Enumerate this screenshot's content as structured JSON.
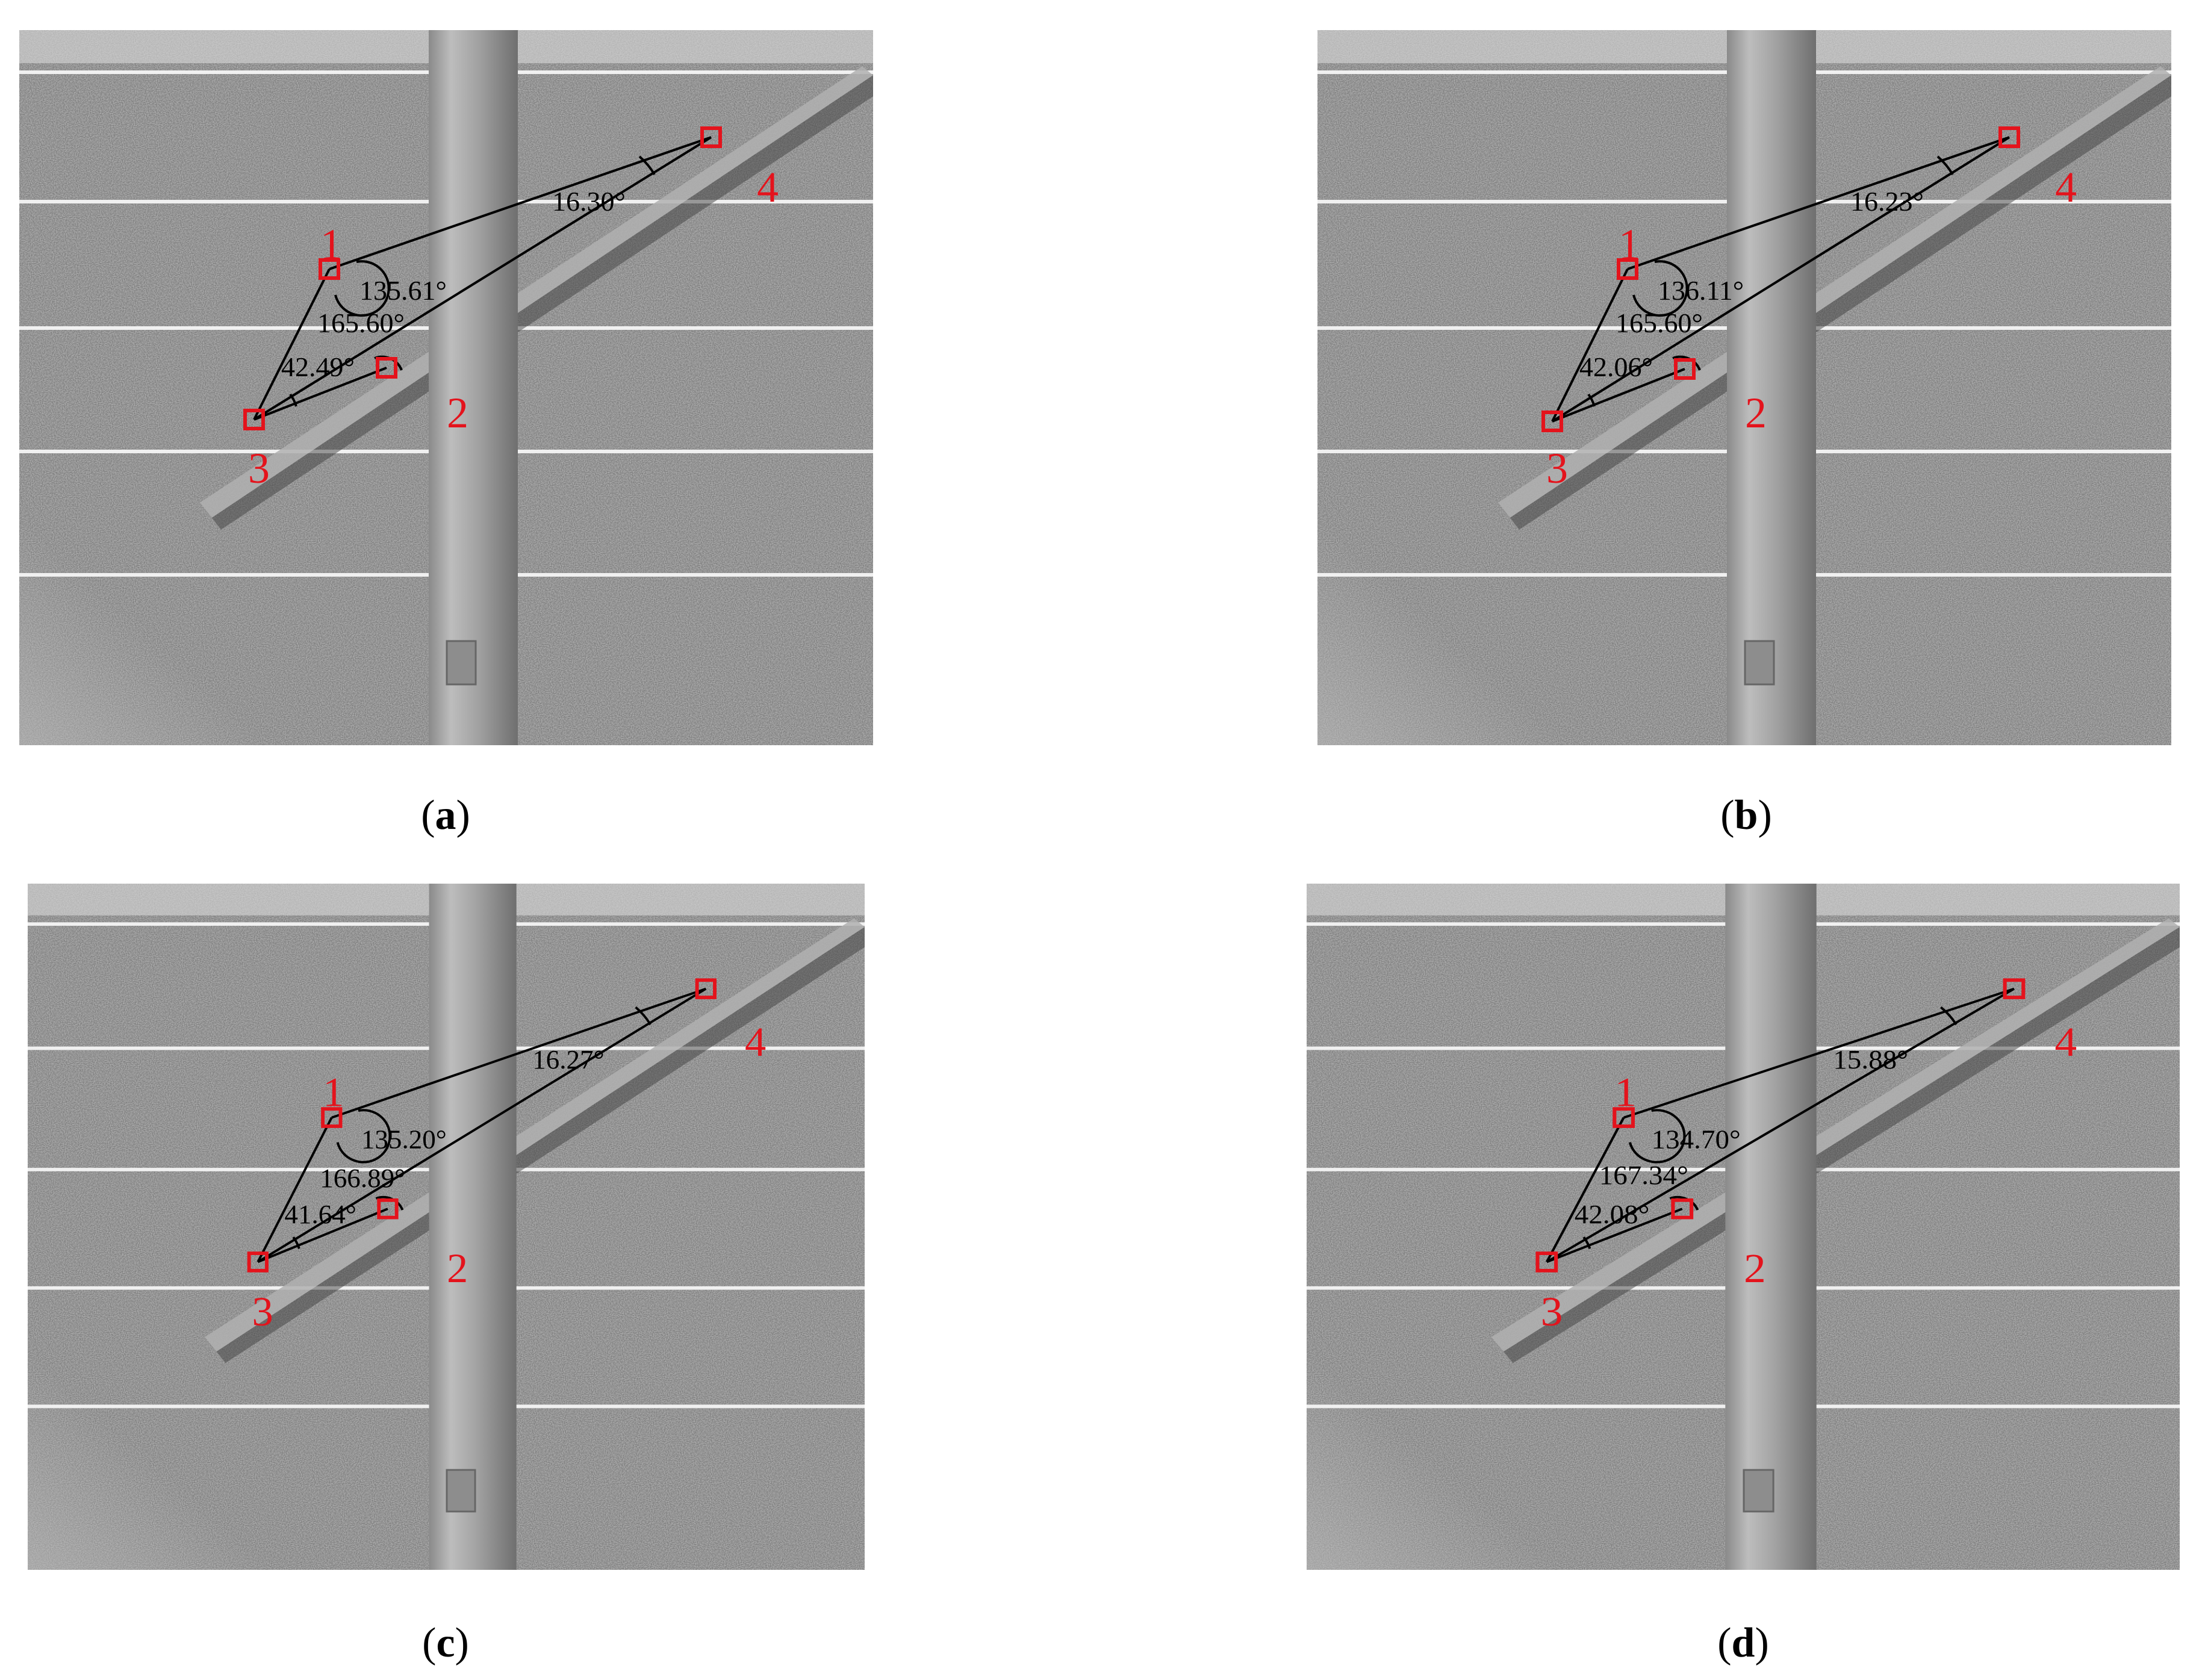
{
  "colors": {
    "marker": "#e4131c",
    "line": "#000000",
    "photo_base": "#7c7c7c"
  },
  "panels": [
    {
      "id": "a",
      "caption_open": "(",
      "caption_letter": "a",
      "caption_close": ")",
      "angles": [
        "16.30°",
        "135.61°",
        "165.60°",
        "42.49°"
      ],
      "points": [
        "1",
        "2",
        "3",
        "4"
      ]
    },
    {
      "id": "b",
      "caption_open": "(",
      "caption_letter": "b",
      "caption_close": ")",
      "angles": [
        "16.23°",
        "136.11°",
        "165.60°",
        "42.06°"
      ],
      "points": [
        "1",
        "2",
        "3",
        "4"
      ]
    },
    {
      "id": "c",
      "caption_open": "(",
      "caption_letter": "c",
      "caption_close": ")",
      "angles": [
        "16.27°",
        "135.20°",
        "166.89°",
        "41.64°"
      ],
      "points": [
        "1",
        "2",
        "3",
        "4"
      ]
    },
    {
      "id": "d",
      "caption_open": "(",
      "caption_letter": "d",
      "caption_close": ")",
      "angles": [
        "15.88°",
        "134.70°",
        "167.34°",
        "42.08°"
      ],
      "points": [
        "1",
        "2",
        "3",
        "4"
      ]
    }
  ]
}
